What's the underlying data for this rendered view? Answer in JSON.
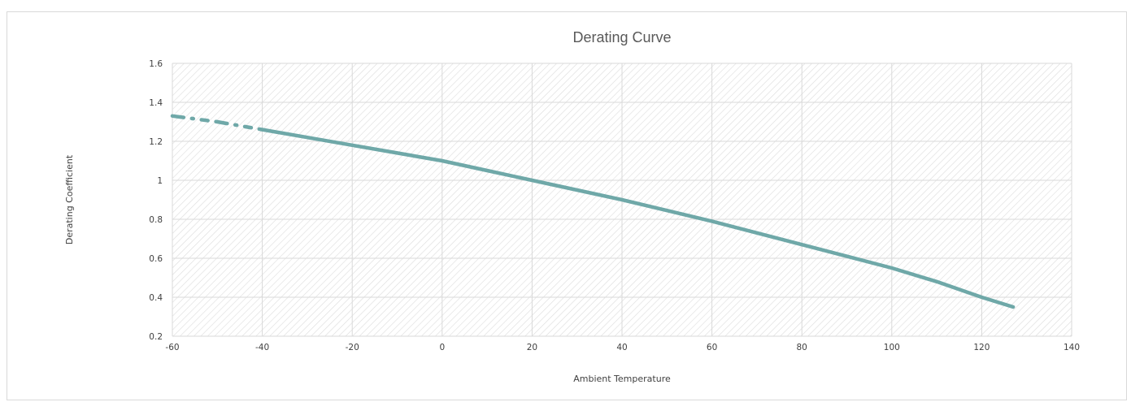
{
  "chart_data": {
    "type": "line",
    "title": "Derating Curve",
    "xlabel": "Ambient Temperature",
    "ylabel": "Derating Coefficient",
    "xlim": [
      -60,
      140
    ],
    "ylim": [
      0.2,
      1.6
    ],
    "xticks": [
      "-60",
      "-40",
      "-20",
      "0",
      "20",
      "40",
      "60",
      "80",
      "100",
      "120",
      "140"
    ],
    "yticks": [
      "0.2",
      "0.4",
      "0.6",
      "0.8",
      "1",
      "1.2",
      "1.4",
      "1.6"
    ],
    "grid": true,
    "legend": "none",
    "colors": {
      "line": "#6fa8a8",
      "grid": "#d9d9d9",
      "hatch": "#dcdcdc"
    },
    "series": [
      {
        "style": "dashed",
        "x": [
          -60,
          -55,
          -50,
          -45,
          -40
        ],
        "y": [
          1.33,
          1.315,
          1.3,
          1.28,
          1.26
        ]
      },
      {
        "style": "solid",
        "x": [
          -40,
          -30,
          -20,
          -10,
          0,
          10,
          20,
          30,
          40,
          50,
          60,
          70,
          80,
          90,
          100,
          110,
          120,
          127
        ],
        "y": [
          1.26,
          1.22,
          1.18,
          1.14,
          1.1,
          1.05,
          1.0,
          0.95,
          0.9,
          0.845,
          0.79,
          0.73,
          0.67,
          0.61,
          0.55,
          0.48,
          0.4,
          0.35
        ]
      }
    ]
  }
}
